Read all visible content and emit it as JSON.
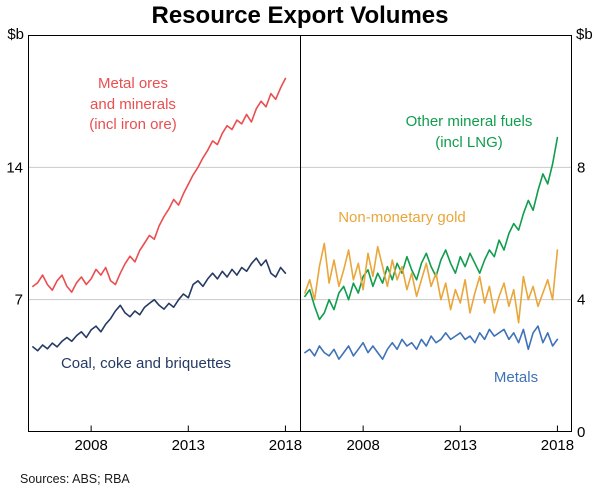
{
  "title": "Resource Export Volumes",
  "footer": {
    "sources": "Sources: ABS; RBA"
  },
  "axes": {
    "left_unit": "$b",
    "right_unit": "$b",
    "left_ylim": [
      0,
      21
    ],
    "right_ylim": [
      0,
      12
    ],
    "left_ticks": [
      7,
      14
    ],
    "right_ticks": [
      0,
      4,
      8
    ],
    "x_domain": [
      2004.75,
      2018.75
    ],
    "x_ticks": [
      2008,
      2013,
      2018
    ]
  },
  "annotations": {
    "metal_ores": {
      "text": "Metal ores\nand minerals\n(incl iron ore)",
      "color": "#ea4e50"
    },
    "coal": {
      "text": "Coal, coke and briquettes",
      "color": "#263a63"
    },
    "other_fuels": {
      "text": "Other mineral fuels\n(incl LNG)",
      "color": "#109d4e"
    },
    "gold": {
      "text": "Non-monetary gold",
      "color": "#e9a63a"
    },
    "metals": {
      "text": "Metals",
      "color": "#3e72b8"
    }
  },
  "chart_data": [
    {
      "type": "line",
      "panel": "left",
      "title": "Resource Export Volumes (left panel)",
      "ylabel": "$b",
      "ylim": [
        0,
        21
      ],
      "gridline_values": [
        7,
        14
      ],
      "x_start": 2005.0,
      "x_step": 0.25,
      "x_end": 2018.0,
      "series": [
        {
          "name": "Metal ores and minerals (incl iron ore)",
          "color": "#ea4e50",
          "values": [
            7.7,
            7.9,
            8.3,
            7.8,
            7.5,
            8.0,
            8.3,
            7.7,
            7.4,
            7.9,
            8.2,
            7.8,
            8.1,
            8.6,
            8.3,
            8.7,
            8.0,
            7.8,
            8.4,
            8.9,
            9.3,
            9.0,
            9.6,
            10.0,
            10.4,
            10.2,
            10.9,
            11.4,
            11.8,
            12.3,
            12.0,
            12.6,
            13.1,
            13.6,
            14.0,
            14.5,
            14.9,
            15.4,
            15.2,
            15.8,
            16.2,
            16.0,
            16.5,
            16.3,
            16.8,
            16.4,
            17.1,
            17.5,
            17.2,
            17.9,
            17.6,
            18.2,
            18.7
          ]
        },
        {
          "name": "Coal, coke and briquettes",
          "color": "#263a63",
          "values": [
            4.5,
            4.3,
            4.6,
            4.4,
            4.7,
            4.5,
            4.8,
            5.0,
            4.8,
            5.1,
            5.3,
            5.0,
            5.4,
            5.6,
            5.3,
            5.7,
            6.0,
            6.4,
            6.7,
            6.3,
            6.1,
            6.4,
            6.2,
            6.6,
            6.8,
            7.0,
            6.7,
            6.5,
            6.8,
            6.6,
            7.0,
            7.3,
            7.1,
            7.8,
            8.0,
            7.7,
            8.1,
            8.4,
            8.1,
            8.5,
            8.2,
            8.6,
            8.3,
            8.7,
            8.5,
            8.9,
            9.2,
            8.8,
            9.1,
            8.4,
            8.2,
            8.7,
            8.4
          ]
        }
      ]
    },
    {
      "type": "line",
      "panel": "right",
      "title": "Resource Export Volumes (right panel)",
      "ylabel": "$b",
      "ylim": [
        0,
        12
      ],
      "gridline_values": [
        4,
        8
      ],
      "x_start": 2005.0,
      "x_step": 0.25,
      "x_end": 2018.0,
      "series": [
        {
          "name": "Other mineral fuels (incl LNG)",
          "color": "#109d4e",
          "values": [
            4.1,
            4.3,
            3.8,
            3.4,
            3.6,
            4.0,
            3.7,
            4.2,
            4.4,
            4.0,
            4.5,
            4.2,
            4.7,
            4.9,
            4.4,
            4.8,
            4.5,
            5.0,
            4.6,
            5.1,
            4.8,
            5.3,
            4.9,
            4.6,
            5.1,
            5.4,
            5.0,
            4.7,
            5.2,
            5.5,
            5.1,
            4.8,
            5.3,
            5.0,
            5.4,
            5.1,
            4.8,
            5.2,
            5.5,
            5.3,
            5.8,
            5.5,
            6.0,
            6.3,
            6.1,
            6.6,
            7.0,
            6.7,
            7.3,
            7.8,
            7.5,
            8.1,
            8.9
          ]
        },
        {
          "name": "Non-monetary gold",
          "color": "#e9a63a",
          "values": [
            4.2,
            4.6,
            4.0,
            5.0,
            5.7,
            4.5,
            5.2,
            4.4,
            4.9,
            5.5,
            4.6,
            5.1,
            4.3,
            5.4,
            4.7,
            5.6,
            5.0,
            4.4,
            5.2,
            4.6,
            5.0,
            4.3,
            4.8,
            4.1,
            4.6,
            5.1,
            4.4,
            4.8,
            4.0,
            4.5,
            3.7,
            4.3,
            3.9,
            4.6,
            3.6,
            4.2,
            4.7,
            3.9,
            4.4,
            3.6,
            4.1,
            4.5,
            3.8,
            4.3,
            3.3,
            4.7,
            4.0,
            4.4,
            3.8,
            4.2,
            4.6,
            4.0,
            5.5
          ]
        },
        {
          "name": "Metals",
          "color": "#3e72b8",
          "values": [
            2.4,
            2.5,
            2.3,
            2.6,
            2.4,
            2.3,
            2.5,
            2.2,
            2.4,
            2.6,
            2.3,
            2.5,
            2.7,
            2.4,
            2.6,
            2.4,
            2.2,
            2.5,
            2.7,
            2.5,
            2.8,
            2.6,
            2.7,
            2.5,
            2.8,
            2.6,
            2.9,
            2.7,
            2.8,
            3.0,
            2.8,
            2.9,
            3.0,
            2.8,
            2.9,
            2.7,
            3.0,
            2.8,
            3.1,
            2.9,
            3.0,
            3.1,
            2.8,
            3.0,
            2.7,
            3.1,
            2.5,
            3.0,
            3.2,
            2.7,
            3.0,
            2.6,
            2.8
          ]
        }
      ]
    }
  ]
}
